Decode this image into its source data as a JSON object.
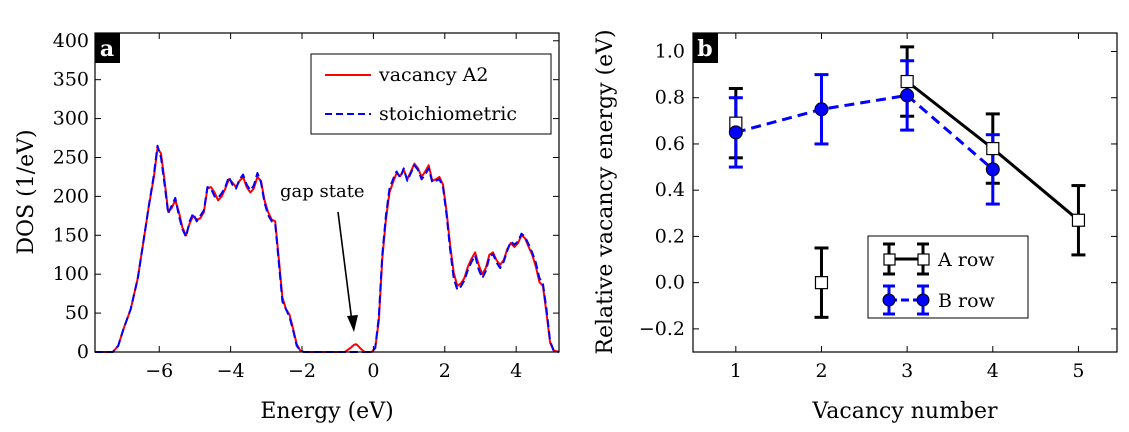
{
  "chart_data": [
    {
      "panel_label": "a",
      "type": "line",
      "xlabel": "Energy (eV)",
      "ylabel": "DOS (1/eV)",
      "xlim": [
        -7.8,
        5.2
      ],
      "ylim": [
        0,
        410
      ],
      "xticks": [
        -6,
        -4,
        -2,
        0,
        2,
        4
      ],
      "xtick_labels": [
        "−6",
        "−4",
        "−2",
        "0",
        "2",
        "4"
      ],
      "yticks": [
        0,
        50,
        100,
        150,
        200,
        250,
        300,
        350,
        400
      ],
      "ytick_labels": [
        "0",
        "50",
        "100",
        "150",
        "200",
        "250",
        "300",
        "350",
        "400"
      ],
      "legend_position": "top-right",
      "annotation": {
        "text": "gap state",
        "points_to": {
          "x": -0.5,
          "y": 20
        }
      },
      "series": [
        {
          "name": "vacancy A2",
          "color": "#ff0000",
          "style": "solid",
          "x": [
            -7.8,
            -7.3,
            -7.15,
            -7.0,
            -6.8,
            -6.6,
            -6.45,
            -6.3,
            -6.15,
            -6.05,
            -5.95,
            -5.85,
            -5.75,
            -5.65,
            -5.55,
            -5.45,
            -5.35,
            -5.25,
            -5.15,
            -5.05,
            -4.95,
            -4.85,
            -4.75,
            -4.65,
            -4.55,
            -4.45,
            -4.35,
            -4.25,
            -4.15,
            -4.05,
            -3.95,
            -3.85,
            -3.75,
            -3.65,
            -3.55,
            -3.45,
            -3.35,
            -3.25,
            -3.15,
            -3.05,
            -2.95,
            -2.85,
            -2.75,
            -2.65,
            -2.55,
            -2.45,
            -2.35,
            -2.25,
            -2.15,
            -2.05,
            -1.95,
            -1.85,
            -1.75,
            -1.6,
            -1.4,
            -1.2,
            -1.0,
            -0.8,
            -0.65,
            -0.55,
            -0.5,
            -0.45,
            -0.35,
            -0.25,
            -0.15,
            -0.05,
            0.05,
            0.15,
            0.25,
            0.35,
            0.45,
            0.55,
            0.65,
            0.75,
            0.85,
            0.95,
            1.05,
            1.15,
            1.25,
            1.35,
            1.45,
            1.55,
            1.65,
            1.75,
            1.85,
            1.95,
            2.05,
            2.15,
            2.25,
            2.35,
            2.45,
            2.55,
            2.65,
            2.75,
            2.85,
            2.95,
            3.05,
            3.15,
            3.25,
            3.35,
            3.45,
            3.55,
            3.65,
            3.75,
            3.85,
            3.95,
            4.05,
            4.15,
            4.25,
            4.35,
            4.45,
            4.55,
            4.65,
            4.75,
            4.85,
            4.95,
            5.05,
            5.2
          ],
          "y": [
            0,
            0,
            8,
            30,
            55,
            95,
            140,
            185,
            225,
            262,
            255,
            220,
            180,
            185,
            195,
            180,
            160,
            150,
            165,
            175,
            170,
            172,
            180,
            210,
            212,
            205,
            195,
            200,
            210,
            222,
            218,
            212,
            220,
            225,
            212,
            205,
            210,
            225,
            220,
            195,
            180,
            170,
            168,
            120,
            70,
            55,
            48,
            30,
            10,
            2,
            0,
            0,
            0,
            0,
            0,
            0,
            0,
            0,
            5,
            9,
            10,
            9,
            4,
            0,
            0,
            0,
            5,
            40,
            120,
            170,
            205,
            218,
            230,
            226,
            234,
            222,
            232,
            242,
            236,
            225,
            232,
            240,
            220,
            222,
            225,
            215,
            180,
            138,
            102,
            85,
            88,
            95,
            110,
            120,
            128,
            112,
            100,
            108,
            125,
            128,
            118,
            112,
            118,
            132,
            140,
            135,
            140,
            150,
            146,
            135,
            125,
            110,
            90,
            85,
            50,
            12,
            2,
            0
          ]
        },
        {
          "name": "stoichiometric",
          "color": "#0000ff",
          "style": "dashed",
          "x": [
            -7.8,
            -7.3,
            -7.15,
            -7.0,
            -6.8,
            -6.6,
            -6.45,
            -6.3,
            -6.15,
            -6.05,
            -5.95,
            -5.85,
            -5.75,
            -5.65,
            -5.55,
            -5.45,
            -5.35,
            -5.25,
            -5.15,
            -5.05,
            -4.95,
            -4.85,
            -4.75,
            -4.65,
            -4.55,
            -4.45,
            -4.35,
            -4.25,
            -4.15,
            -4.05,
            -3.95,
            -3.85,
            -3.75,
            -3.65,
            -3.55,
            -3.45,
            -3.35,
            -3.25,
            -3.15,
            -3.05,
            -2.95,
            -2.85,
            -2.75,
            -2.65,
            -2.55,
            -2.45,
            -2.35,
            -2.25,
            -2.15,
            -2.05,
            -1.95,
            -1.85,
            -1.75,
            -1.6,
            -1.4,
            -1.2,
            -1.0,
            -0.8,
            -0.6,
            -0.4,
            -0.2,
            -0.05,
            0.05,
            0.15,
            0.25,
            0.35,
            0.45,
            0.55,
            0.65,
            0.75,
            0.85,
            0.95,
            1.05,
            1.15,
            1.25,
            1.35,
            1.45,
            1.55,
            1.65,
            1.75,
            1.85,
            1.95,
            2.05,
            2.15,
            2.25,
            2.35,
            2.45,
            2.55,
            2.65,
            2.75,
            2.85,
            2.95,
            3.05,
            3.15,
            3.25,
            3.35,
            3.45,
            3.55,
            3.65,
            3.75,
            3.85,
            3.95,
            4.05,
            4.15,
            4.25,
            4.35,
            4.45,
            4.55,
            4.65,
            4.75,
            4.85,
            4.95,
            5.05,
            5.2
          ],
          "y": [
            0,
            0,
            8,
            30,
            55,
            95,
            140,
            185,
            228,
            265,
            250,
            215,
            178,
            188,
            198,
            175,
            158,
            148,
            168,
            178,
            168,
            175,
            182,
            212,
            210,
            200,
            198,
            204,
            212,
            225,
            215,
            210,
            222,
            228,
            215,
            208,
            214,
            230,
            218,
            192,
            176,
            168,
            165,
            115,
            65,
            55,
            45,
            28,
            8,
            2,
            0,
            0,
            0,
            0,
            0,
            0,
            0,
            0,
            0,
            0,
            0,
            0,
            5,
            45,
            125,
            175,
            210,
            222,
            232,
            224,
            236,
            220,
            230,
            240,
            234,
            222,
            228,
            236,
            218,
            220,
            222,
            212,
            176,
            132,
            95,
            80,
            84,
            92,
            106,
            116,
            124,
            106,
            95,
            104,
            122,
            126,
            115,
            108,
            116,
            130,
            142,
            138,
            142,
            152,
            148,
            138,
            128,
            115,
            95,
            88,
            55,
            14,
            2,
            0
          ]
        }
      ]
    },
    {
      "panel_label": "b",
      "type": "scatter",
      "xlabel": "Vacancy number",
      "ylabel": "Relative vacancy energy (eV)",
      "xlim": [
        0.5,
        5.45
      ],
      "ylim": [
        -0.3,
        1.08
      ],
      "xticks": [
        1,
        2,
        3,
        4,
        5
      ],
      "xtick_labels": [
        "1",
        "2",
        "3",
        "4",
        "5"
      ],
      "yticks": [
        -0.2,
        0.0,
        0.2,
        0.4,
        0.6,
        0.8,
        1.0
      ],
      "ytick_labels": [
        "−0.2",
        "0.0",
        "0.2",
        "0.4",
        "0.6",
        "0.8",
        "1.0"
      ],
      "legend_position": "lower-center",
      "series": [
        {
          "name": "A row",
          "color": "#000000",
          "marker": "square-open",
          "x": [
            1,
            2,
            3,
            4,
            5
          ],
          "y": [
            0.69,
            0.0,
            0.87,
            0.58,
            0.27
          ],
          "yerr": [
            0.15,
            0.15,
            0.15,
            0.15,
            0.15
          ],
          "line_segments": [
            [
              2,
              4
            ]
          ]
        },
        {
          "name": "B row",
          "color": "#0000ff",
          "marker": "circle-filled",
          "linestyle": "dashed",
          "x": [
            1,
            2,
            3,
            4
          ],
          "y": [
            0.65,
            0.75,
            0.81,
            0.49
          ],
          "yerr": [
            0.15,
            0.15,
            0.15,
            0.15
          ]
        }
      ]
    }
  ]
}
